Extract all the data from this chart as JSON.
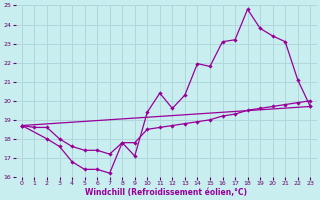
{
  "bg_color": "#c8eef0",
  "grid_color": "#b0d8dc",
  "line_color": "#990099",
  "xlabel": "Windchill (Refroidissement éolien,°C)",
  "xlim": [
    -0.5,
    23.5
  ],
  "ylim": [
    16,
    25
  ],
  "xticks": [
    0,
    1,
    2,
    3,
    4,
    5,
    6,
    7,
    8,
    9,
    10,
    11,
    12,
    13,
    14,
    15,
    16,
    17,
    18,
    19,
    20,
    21,
    22,
    23
  ],
  "yticks": [
    16,
    17,
    18,
    19,
    20,
    21,
    22,
    23,
    24,
    25
  ],
  "line1_x": [
    0,
    1,
    2,
    3,
    4,
    5,
    6,
    7,
    8,
    9,
    10,
    11,
    12,
    13,
    14,
    15,
    16,
    17,
    18,
    19,
    20,
    21,
    22,
    23
  ],
  "line1_y": [
    18.7,
    18.6,
    18.6,
    18.0,
    17.6,
    17.4,
    17.4,
    17.2,
    17.8,
    17.8,
    18.5,
    18.6,
    18.7,
    18.8,
    18.9,
    19.0,
    19.2,
    19.3,
    19.5,
    19.6,
    19.7,
    19.8,
    19.9,
    20.0
  ],
  "line2_x": [
    0,
    2,
    3,
    4,
    5,
    6,
    7,
    8,
    9,
    10,
    11,
    12,
    13,
    14,
    15,
    16,
    17,
    18,
    19,
    20,
    21,
    22,
    23
  ],
  "line2_y": [
    18.7,
    18.0,
    17.6,
    16.8,
    16.4,
    16.4,
    16.2,
    17.8,
    17.1,
    19.4,
    20.4,
    19.6,
    20.3,
    21.95,
    21.8,
    23.1,
    23.2,
    24.8,
    23.8,
    23.4,
    23.1,
    21.1,
    19.7
  ],
  "line3_x": [
    0,
    23
  ],
  "line3_y": [
    18.7,
    19.7
  ]
}
